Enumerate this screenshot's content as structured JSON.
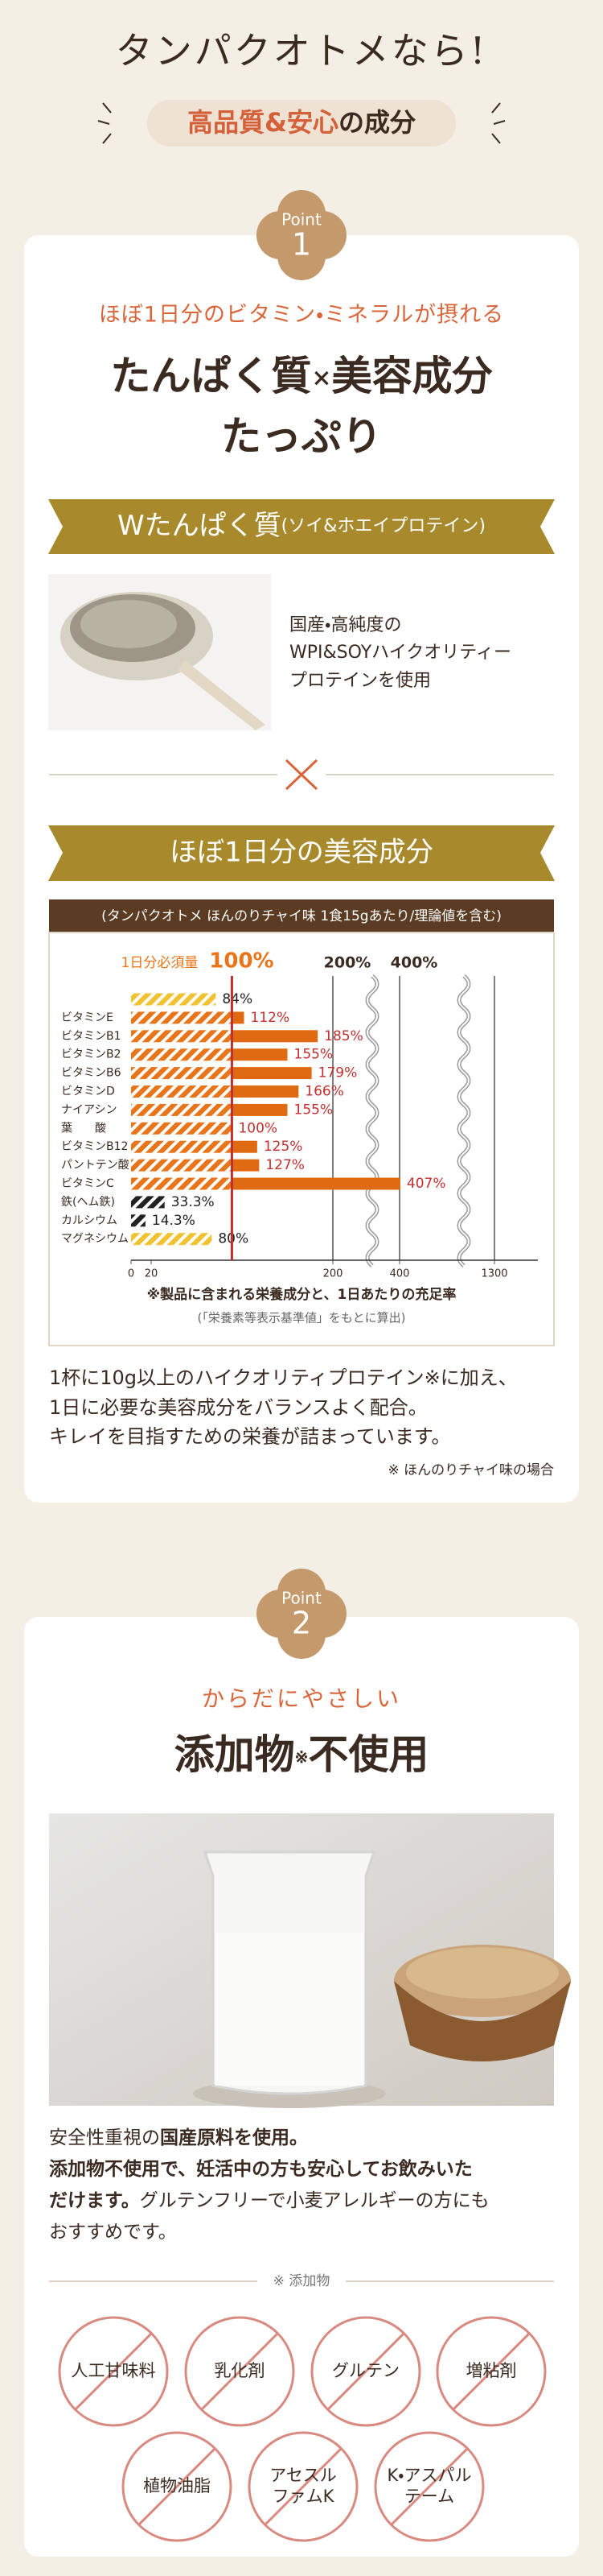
{
  "header": {
    "title": "タンパクオトメなら!",
    "subtitle_highlight": "高品質&安心",
    "subtitle_rest": "の成分"
  },
  "point1": {
    "badge_label": "Point",
    "badge_number": "1",
    "lead": "ほぼ1日分のビタミン・ミネラルが摂れる",
    "headline_a": "たんぱく質",
    "headline_times": "×",
    "headline_b": "美容成分",
    "headline_line2": "たっぷり",
    "protein_ribbon_main": "Wたんぱく質",
    "protein_ribbon_sub": "(ソイ&ホエイプロテイン)",
    "protein_text": [
      "国産・高純度の",
      "WPI&SOYハイクオリティー",
      "プロテインを使用"
    ],
    "nutrient_ribbon": "ほぼ1日分の美容成分",
    "nutrient_chart": {
      "header": "(タンパクオトメ ほんのりチャイ味 1食15gあたり/理論値を含む)",
      "reference_label": "1日分必須量",
      "reference": {
        "value": 100,
        "label": "100%"
      },
      "top_labels": [
        {
          "value": 200,
          "label": "200%"
        },
        {
          "value": 400,
          "label": "400%"
        }
      ],
      "categories": [
        null,
        "ビタミンE",
        "ビタミンB1",
        "ビタミンB2",
        "ビタミンB6",
        "ビタミンD",
        "ナイアシン",
        "葉　　酸",
        "ビタミンB12",
        "パントテン酸",
        "ビタミンC",
        "鉄(ヘム鉄)",
        "カルシウム",
        "マグネシウム"
      ],
      "values": [
        84,
        112,
        185,
        155,
        179,
        166,
        155,
        100,
        125,
        127,
        407,
        33.3,
        14.3,
        80
      ],
      "value_labels": [
        "84%",
        "112%",
        "185%",
        "155%",
        "179%",
        "166%",
        "155%",
        "100%",
        "125%",
        "127%",
        "407%",
        "33.3%",
        "14.3%",
        "80%"
      ],
      "bar_styles": [
        "yellow",
        "orange",
        "orange",
        "orange",
        "orange",
        "orange",
        "orange",
        "orange",
        "orange",
        "orange",
        "orange",
        "black",
        "black",
        "yellow"
      ],
      "xlim": [
        0,
        1300
      ],
      "xticks": [
        0,
        20,
        200,
        400,
        1300
      ],
      "notes": [
        "※製品に含まれる栄養成分と、1日あたりの充足率",
        "(「栄養素等表示基準値」をもとに算出)"
      ]
    },
    "paragraph": [
      "1杯に10g以上のハイクオリティプロテイン※に加え、",
      "1日に必要な美容成分をバランスよく配合。",
      "キレイを目指すための栄養が詰まっています。"
    ],
    "note": "※ ほんのりチャイ味の場合"
  },
  "point2": {
    "badge_label": "Point",
    "badge_number": "2",
    "lead": "からだにやさしい",
    "headline_a": "添加物",
    "headline_mark": "※",
    "headline_b": "不使用",
    "paragraph": [
      [
        "安全性重視の",
        "国産原料を使用。"
      ],
      [
        "添加物不使用で、妊活中の方も安心してお飲みいた"
      ],
      [
        "だけます。",
        "グルテンフリーで小麦アレルギーの方にも"
      ],
      [
        "おすすめです。"
      ]
    ],
    "additives_heading": "※ 添加物",
    "additives": [
      [
        "人工甘味料"
      ],
      [
        "乳化剤"
      ],
      [
        "グルテン"
      ],
      [
        "増粘剤"
      ],
      [
        "植物油脂"
      ],
      [
        "アセスル",
        "ファムK"
      ],
      [
        "K・アスパル",
        "テーム"
      ]
    ]
  }
}
